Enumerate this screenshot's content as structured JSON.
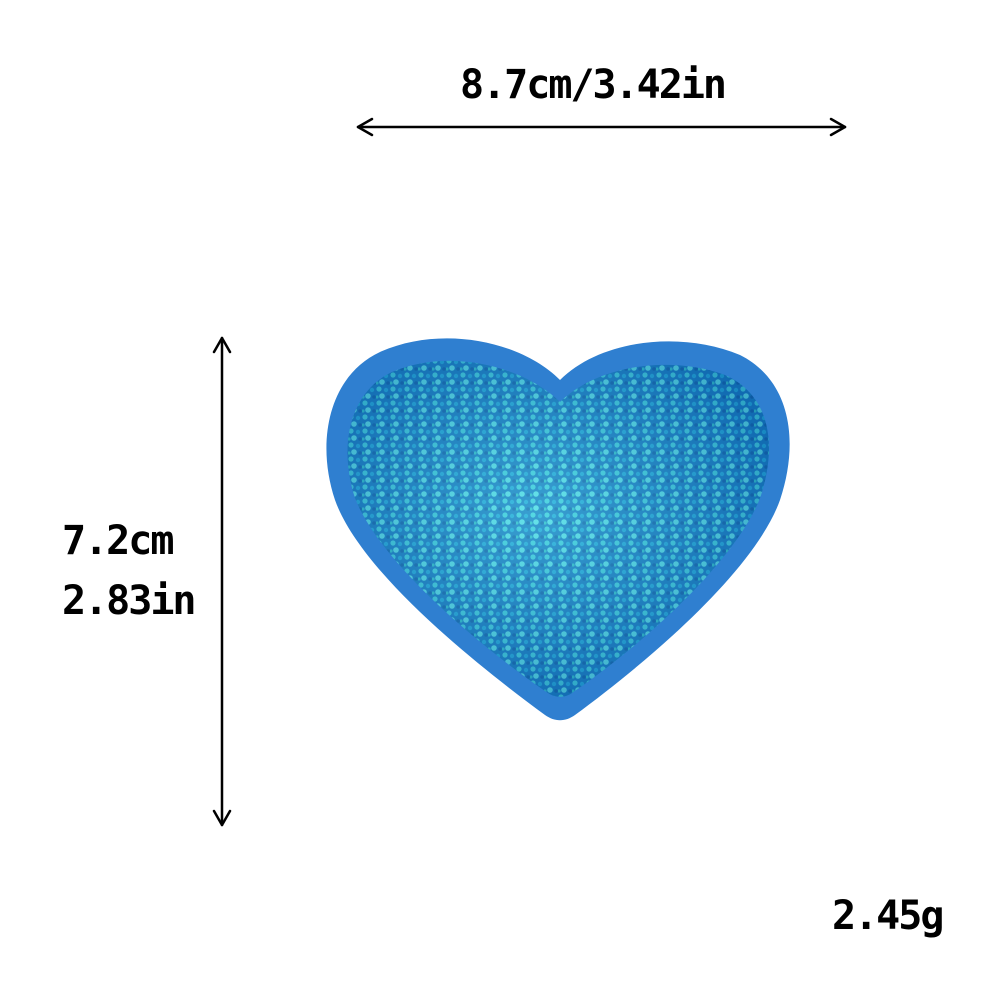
{
  "dimensions": {
    "width_label": "8.7cm/3.42in",
    "height_cm": "7.2cm",
    "height_in": "2.83in",
    "weight": "2.45g"
  },
  "product": {
    "icon": "heart-patch-icon",
    "felt_color": "#2f7fd0",
    "sequin_colors": [
      "#1fa6d8",
      "#2ec0c8",
      "#1a7fc8",
      "#58d8e0",
      "#0f5fa8"
    ]
  }
}
